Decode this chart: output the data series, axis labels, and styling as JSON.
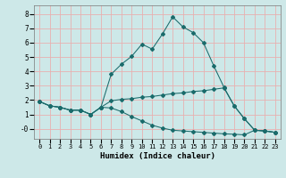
{
  "xlabel": "Humidex (Indice chaleur)",
  "bg_color": "#cde8e8",
  "grid_color": "#e8b0b0",
  "line_color": "#1a6b6b",
  "xlim": [
    -0.5,
    23.5
  ],
  "ylim": [
    -0.7,
    8.6
  ],
  "xticks": [
    0,
    1,
    2,
    3,
    4,
    5,
    6,
    7,
    8,
    9,
    10,
    11,
    12,
    13,
    14,
    15,
    16,
    17,
    18,
    19,
    20,
    21,
    22,
    23
  ],
  "yticks": [
    0,
    1,
    2,
    3,
    4,
    5,
    6,
    7,
    8
  ],
  "ytick_labels": [
    "-0",
    "1",
    "2",
    "3",
    "4",
    "5",
    "6",
    "7",
    "8"
  ],
  "line1_x": [
    0,
    1,
    2,
    3,
    4,
    5,
    6,
    7,
    8,
    9,
    10,
    11,
    12,
    13,
    14,
    15,
    16,
    17,
    18,
    19,
    20,
    21,
    22,
    23
  ],
  "line1_y": [
    1.9,
    1.6,
    1.5,
    1.3,
    1.3,
    1.0,
    1.5,
    3.8,
    4.5,
    5.05,
    5.9,
    5.55,
    6.6,
    7.8,
    7.1,
    6.7,
    6.0,
    4.4,
    2.9,
    1.6,
    0.7,
    -0.1,
    -0.15,
    -0.25
  ],
  "line2_x": [
    0,
    1,
    2,
    3,
    4,
    5,
    6,
    7,
    8,
    9,
    10,
    11,
    12,
    13,
    14,
    15,
    16,
    17,
    18,
    19,
    20,
    21,
    22,
    23
  ],
  "line2_y": [
    1.9,
    1.6,
    1.5,
    1.3,
    1.3,
    1.0,
    1.5,
    1.95,
    2.05,
    2.1,
    2.2,
    2.25,
    2.35,
    2.45,
    2.5,
    2.6,
    2.65,
    2.75,
    2.85,
    1.6,
    0.7,
    -0.1,
    -0.15,
    -0.25
  ],
  "line3_x": [
    0,
    1,
    2,
    3,
    4,
    5,
    6,
    7,
    8,
    9,
    10,
    11,
    12,
    13,
    14,
    15,
    16,
    17,
    18,
    19,
    20,
    21,
    22,
    23
  ],
  "line3_y": [
    1.9,
    1.6,
    1.5,
    1.3,
    1.3,
    1.0,
    1.5,
    1.45,
    1.2,
    0.85,
    0.55,
    0.25,
    0.05,
    -0.1,
    -0.15,
    -0.2,
    -0.25,
    -0.3,
    -0.35,
    -0.38,
    -0.42,
    -0.1,
    -0.15,
    -0.25
  ]
}
